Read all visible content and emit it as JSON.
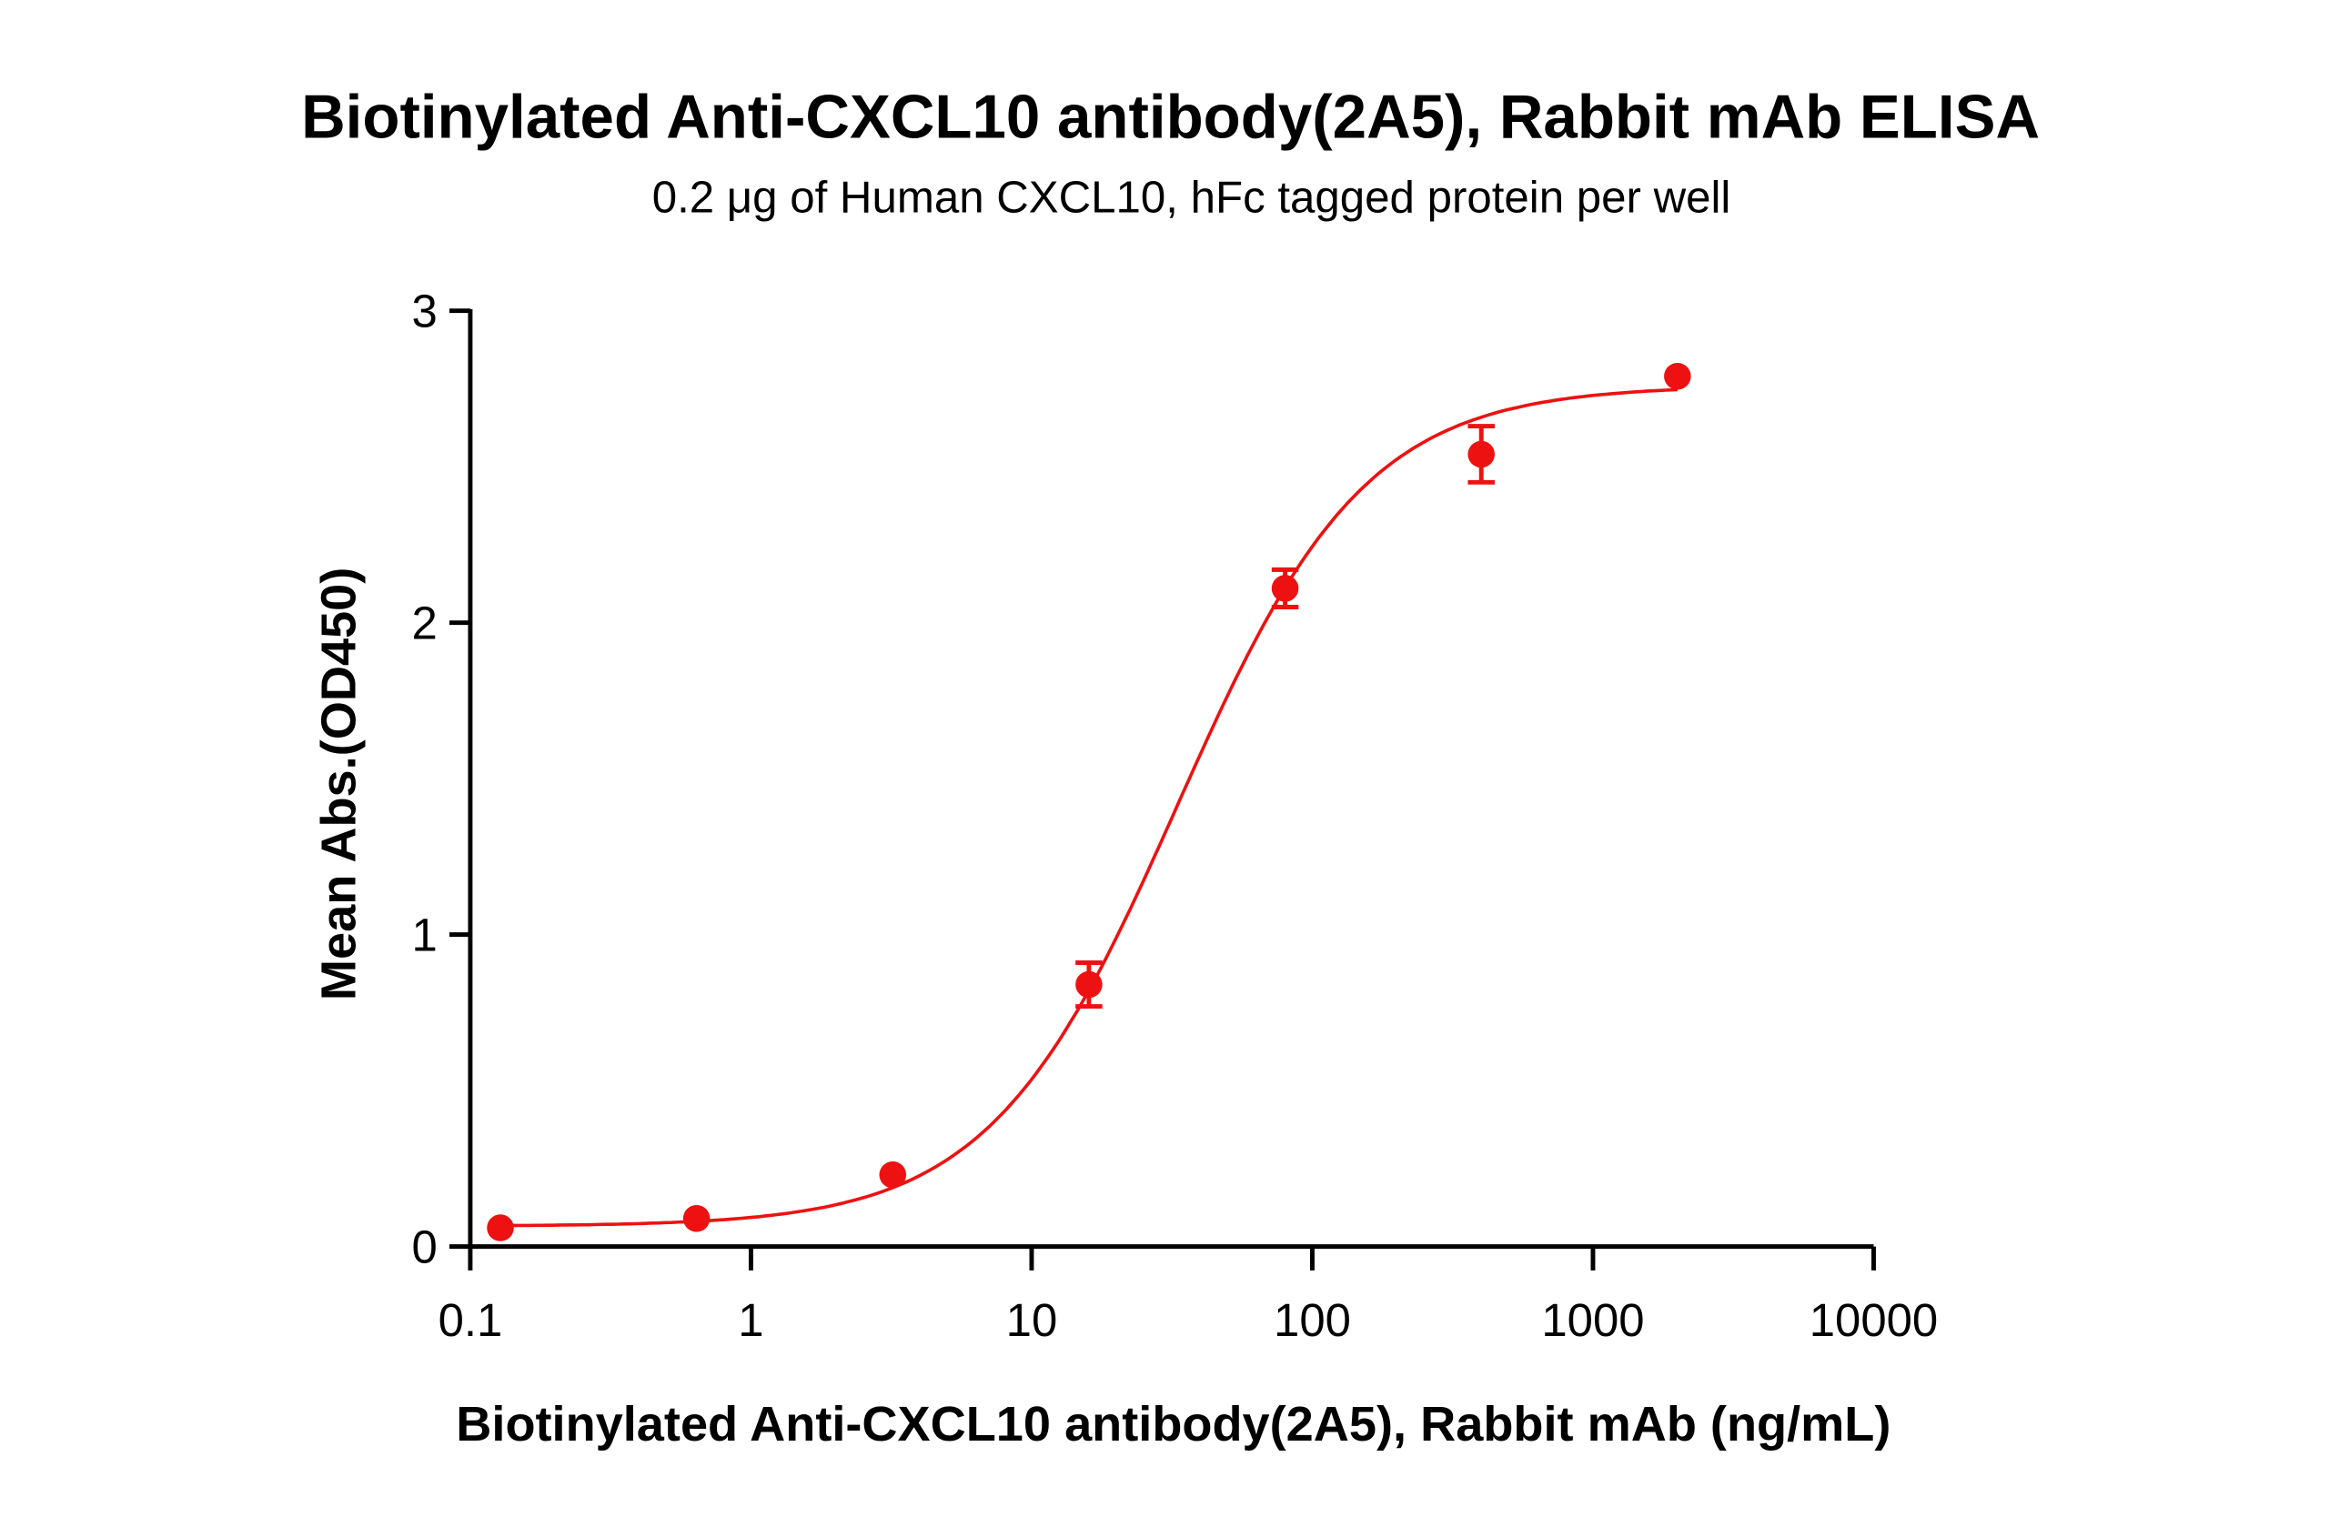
{
  "chart_data": {
    "type": "scatter",
    "title": "Biotinylated Anti-CXCL10 antibody(2A5), Rabbit mAb ELISA",
    "subtitle": "0.2 μg of Human CXCL10, hFc tagged protein per well",
    "xlabel": "Biotinylated Anti-CXCL10 antibody(2A5), Rabbit mAb (ng/mL)",
    "ylabel": "Mean Abs.(OD450)",
    "xscale": "log",
    "xlim": [
      0.1,
      10000
    ],
    "ylim": [
      0,
      3
    ],
    "xticks": [
      "0.1",
      "1",
      "10",
      "100",
      "1000",
      "10000"
    ],
    "yticks": [
      "0",
      "1",
      "2",
      "3"
    ],
    "grid": false,
    "color": "#ee1111",
    "points": [
      {
        "x": 0.128,
        "y": 0.06,
        "err": 0
      },
      {
        "x": 0.64,
        "y": 0.09,
        "err": 0
      },
      {
        "x": 3.2,
        "y": 0.23,
        "err": 0
      },
      {
        "x": 16,
        "y": 0.84,
        "err": 0.07
      },
      {
        "x": 80,
        "y": 2.11,
        "err": 0.06
      },
      {
        "x": 400,
        "y": 2.54,
        "err": 0.09
      },
      {
        "x": 2000,
        "y": 2.79,
        "err": 0
      }
    ],
    "fit": {
      "model": "4PL",
      "bottom": 0.065,
      "top": 2.76,
      "ec50": 33,
      "hill": 1.3
    }
  }
}
